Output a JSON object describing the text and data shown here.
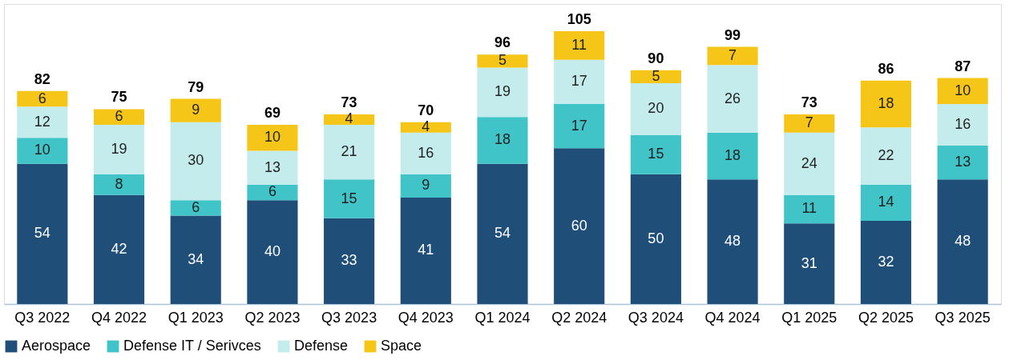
{
  "chart_data": {
    "type": "bar",
    "stacked": true,
    "data_labels": true,
    "legend": "bottom",
    "grid": false,
    "categories": [
      "Q3 2022",
      "Q4 2022",
      "Q1 2023",
      "Q2 2023",
      "Q3 2023",
      "Q4 2023",
      "Q1 2024",
      "Q2 2024",
      "Q3 2024",
      "Q4 2024",
      "Q1 2025",
      "Q2 2025",
      "Q3 2025"
    ],
    "series": [
      {
        "name": "Aerospace",
        "color": "#1f4e79",
        "values": [
          54,
          42,
          34,
          40,
          33,
          41,
          54,
          60,
          50,
          48,
          31,
          32,
          48
        ]
      },
      {
        "name": "Defense IT / Serivces",
        "color": "#40c4c8",
        "values": [
          10,
          8,
          6,
          6,
          15,
          9,
          18,
          17,
          15,
          18,
          11,
          14,
          13
        ]
      },
      {
        "name": "Defense",
        "color": "#c5ecec",
        "values": [
          12,
          19,
          30,
          13,
          21,
          16,
          19,
          17,
          20,
          26,
          24,
          22,
          16
        ]
      },
      {
        "name": "Space",
        "color": "#f5c518",
        "values": [
          6,
          6,
          9,
          10,
          4,
          4,
          5,
          11,
          5,
          7,
          7,
          18,
          10
        ]
      }
    ],
    "totals": [
      "82",
      "75",
      "79",
      "69",
      "73",
      "70",
      "96",
      "105",
      "90",
      "99",
      "73",
      "86",
      "87"
    ]
  }
}
